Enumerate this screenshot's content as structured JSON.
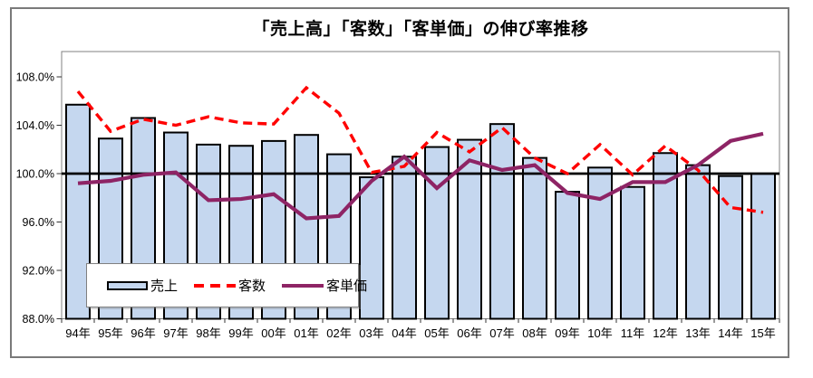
{
  "title": "「売上高」「客数」「客単価」の伸び率推移",
  "legend": {
    "items": [
      {
        "label": "売上",
        "swatch": "bar-swatch"
      },
      {
        "label": "客数",
        "swatch": "dashed-line-swatch"
      },
      {
        "label": "客単価",
        "swatch": "solid-line-swatch"
      }
    ]
  },
  "chart_data": {
    "type": "combo-bar-line",
    "title": "「売上高」「客数」「客単価」の伸び率推移",
    "categories": [
      "94年",
      "95年",
      "96年",
      "97年",
      "98年",
      "99年",
      "00年",
      "01年",
      "02年",
      "03年",
      "04年",
      "05年",
      "06年",
      "07年",
      "08年",
      "09年",
      "10年",
      "11年",
      "12年",
      "13年",
      "14年",
      "15年"
    ],
    "series": [
      {
        "name": "売上",
        "type": "bar",
        "color": "#C5D7EF",
        "border_color": "#000000",
        "values": [
          105.7,
          102.9,
          104.6,
          103.4,
          102.4,
          102.3,
          102.7,
          103.2,
          101.6,
          99.7,
          101.4,
          102.2,
          102.8,
          104.1,
          101.3,
          98.5,
          100.5,
          98.9,
          101.7,
          100.7,
          99.8,
          100.0
        ]
      },
      {
        "name": "客数",
        "type": "line-dashed",
        "color": "#FF0000",
        "values": [
          106.8,
          103.5,
          104.5,
          104.0,
          104.7,
          104.2,
          104.1,
          107.1,
          105.0,
          100.1,
          100.6,
          103.4,
          101.8,
          103.8,
          101.3,
          100.0,
          102.4,
          99.9,
          102.3,
          100.3,
          97.2,
          96.8
        ]
      },
      {
        "name": "客単価",
        "type": "line",
        "color": "#8E2465",
        "values": [
          99.2,
          99.4,
          99.9,
          100.1,
          97.8,
          97.9,
          98.3,
          96.3,
          96.5,
          99.4,
          101.4,
          98.8,
          101.1,
          100.3,
          100.7,
          98.4,
          97.9,
          99.3,
          99.3,
          100.7,
          102.7,
          103.3
        ]
      }
    ],
    "axes": {
      "y_min": 88,
      "y_max": 108,
      "y_step": 4,
      "y_ticks": [
        "108.0%",
        "104.0%",
        "100.0%",
        "96.0%",
        "92.0%",
        "88.0%"
      ],
      "baseline": 100,
      "grid": "off",
      "legend_position": "inside-bottom-left"
    },
    "style": {
      "plot_border": "#808080",
      "tick_color": "#333333",
      "baseline_color": "#000000",
      "background": "#FFFFFF"
    }
  }
}
